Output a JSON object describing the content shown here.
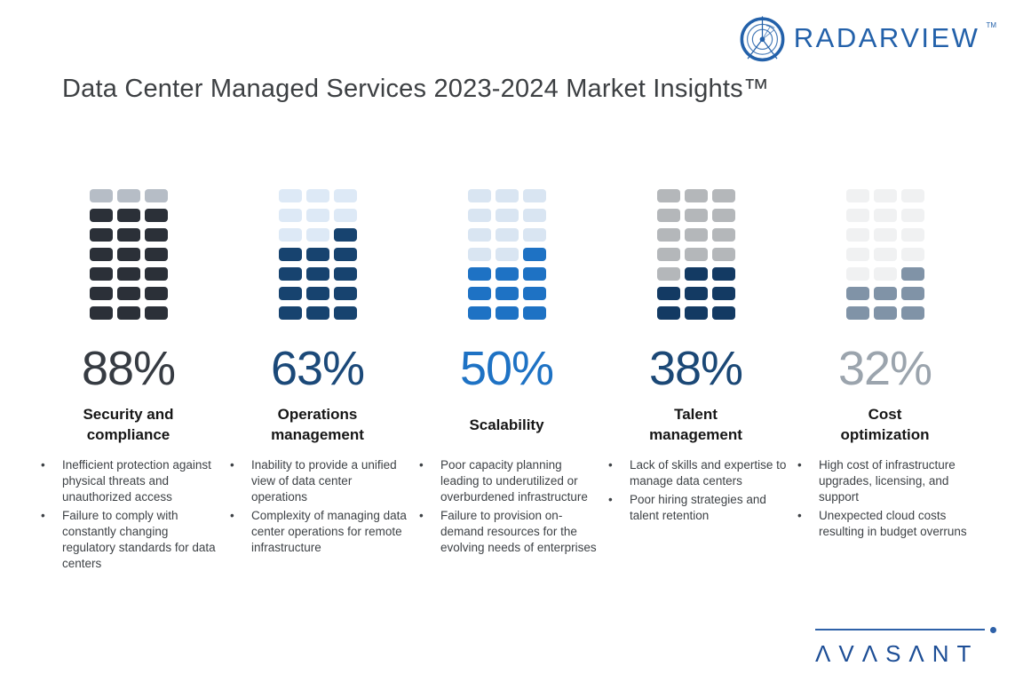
{
  "header": {
    "logo_text": "RADARVIEW",
    "logo_tm": "TM",
    "title": "Data Center Managed Services 2023-2024 Market Insights™"
  },
  "footer": {
    "logo_text": "ΛVΛSΛNT"
  },
  "chart_data": {
    "type": "waffle",
    "title": "Data Center Managed Services 2023-2024 Market Insights™",
    "unit": "%",
    "waffle_grid": {
      "rows": 7,
      "cols": 3,
      "total_blocks": 21,
      "fill_direction": "bottom-up, right-first in partial rows"
    },
    "categories": [
      "Security and compliance",
      "Operations management",
      "Scalability",
      "Talent management",
      "Cost optimization"
    ],
    "values": [
      88,
      63,
      50,
      38,
      32
    ],
    "filled_blocks": [
      18,
      13,
      10,
      8,
      7
    ]
  },
  "columns": [
    {
      "percent_label": "88%",
      "value": 88,
      "filled_blocks": 18,
      "title": "Security and compliance",
      "title_lines": [
        "Security and",
        "compliance"
      ],
      "colors": {
        "percent": "#363b42",
        "filled": "#2b3038",
        "empty": "#b6bdc6"
      },
      "bullets": [
        "Inefficient protection against physical threats and unauthorized access",
        "Failure to comply with constantly changing regulatory standards for data centers"
      ]
    },
    {
      "percent_label": "63%",
      "value": 63,
      "filled_blocks": 13,
      "title": "Operations management",
      "title_lines": [
        "Operations",
        "management"
      ],
      "colors": {
        "percent": "#1b4979",
        "filled": "#17436f",
        "empty": "#dde9f6"
      },
      "bullets": [
        "Inability to provide a unified view of data center operations",
        "Complexity of managing data center operations for remote infrastructure"
      ]
    },
    {
      "percent_label": "50%",
      "value": 50,
      "filled_blocks": 10,
      "title": "Scalability",
      "title_lines": [
        "Scalability"
      ],
      "colors": {
        "percent": "#1e72c4",
        "filled": "#1e72c4",
        "empty": "#d9e5f2"
      },
      "bullets": [
        "Poor capacity planning leading to underutilized or overburdened infrastructure",
        "Failure to provision on-demand resources for the evolving needs of enterprises"
      ]
    },
    {
      "percent_label": "38%",
      "value": 38,
      "filled_blocks": 8,
      "title": "Talent management",
      "title_lines": [
        "Talent",
        "management"
      ],
      "colors": {
        "percent": "#1b4876",
        "filled": "#133a63",
        "empty": "#b4b7ba"
      },
      "bullets": [
        "Lack of skills and expertise to manage data centers",
        "Poor hiring strategies and talent retention"
      ]
    },
    {
      "percent_label": "32%",
      "value": 32,
      "filled_blocks": 7,
      "title": "Cost optimization",
      "title_lines": [
        "Cost",
        "optimization"
      ],
      "colors": {
        "percent": "#9ba4ad",
        "filled": "#8093a7",
        "empty": "#f0f1f2"
      },
      "bullets": [
        "High cost of infrastructure upgrades, licensing, and support",
        "Unexpected cloud costs resulting in budget overruns"
      ]
    }
  ]
}
